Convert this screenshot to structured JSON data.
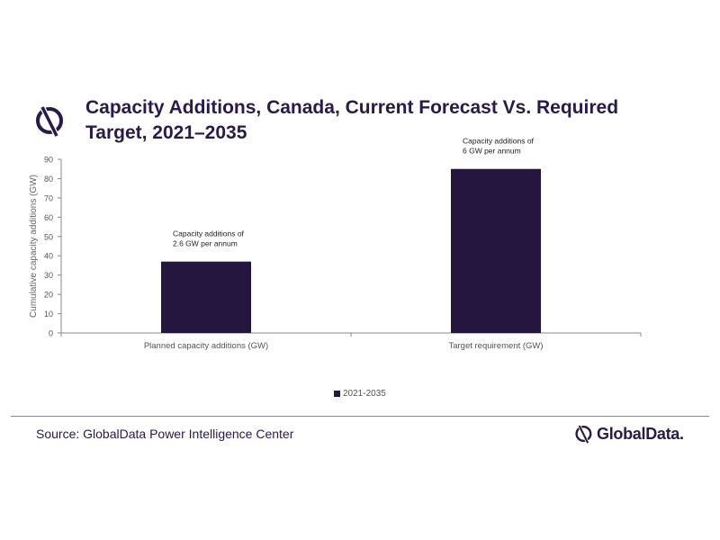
{
  "header": {
    "title": "Capacity Additions, Canada, Current Forecast Vs. Required Target, 2021–2035",
    "logo_icon": "globaldata-logo-icon"
  },
  "colors": {
    "bar": "#24163f",
    "text": "#2a1a4a",
    "axis": "#888888"
  },
  "chart_data": {
    "type": "bar",
    "title": "Capacity Additions, Canada, Current Forecast Vs. Required Target, 2021–2035",
    "categories": [
      "Planned capacity additions (GW)",
      "Target requirement (GW)"
    ],
    "series": [
      {
        "name": "2021-2035",
        "values": [
          37,
          85
        ]
      }
    ],
    "ylabel": "Cumulative capacity additions (GW)",
    "xlabel": "",
    "ylim": [
      0,
      90
    ],
    "yticks": [
      0,
      10,
      20,
      30,
      40,
      50,
      60,
      70,
      80,
      90
    ],
    "grid": false,
    "legend": "bottom-center",
    "annotations": [
      {
        "category": "Planned capacity additions (GW)",
        "lines": [
          "Capacity additions of",
          "2.6 GW per annum"
        ]
      },
      {
        "category": "Target requirement (GW)",
        "lines": [
          "Capacity additions of",
          "6 GW per annum"
        ]
      }
    ]
  },
  "footer": {
    "source": "Source: GlobalData Power Intelligence Center",
    "brand": "GlobalData."
  }
}
